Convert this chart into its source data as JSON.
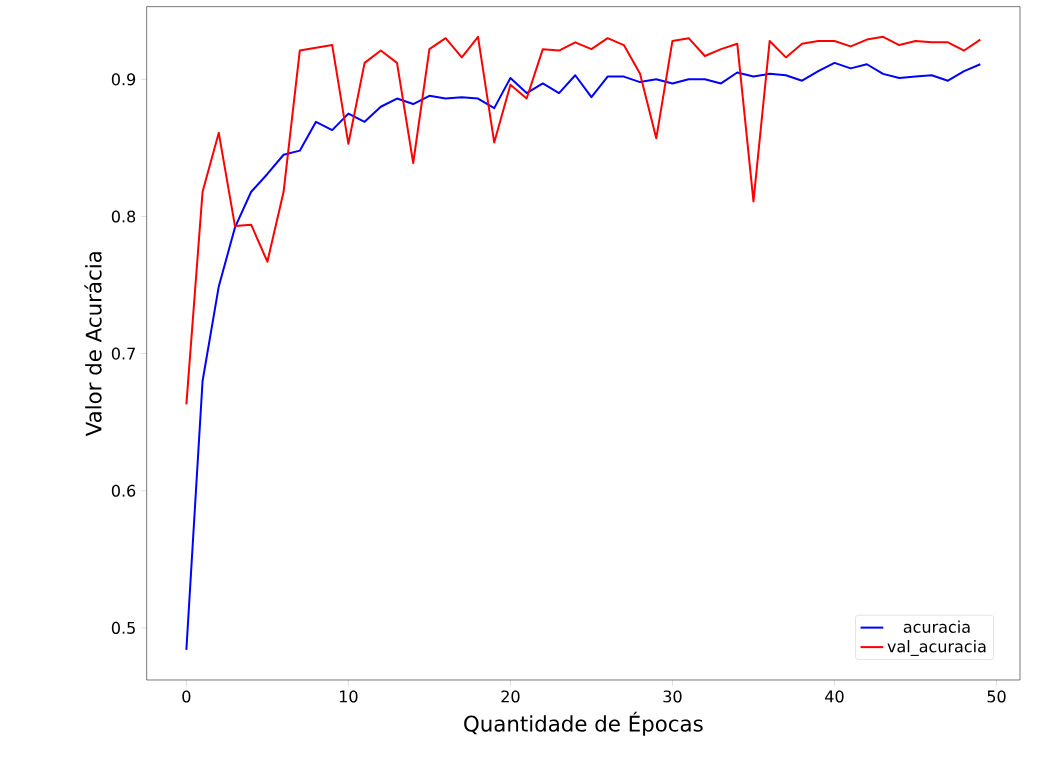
{
  "chart_data": {
    "type": "line",
    "xlabel": "Quantidade de Épocas",
    "ylabel": "Valor de Acurácia",
    "x": [
      0,
      1,
      2,
      3,
      4,
      5,
      6,
      7,
      8,
      9,
      10,
      11,
      12,
      13,
      14,
      15,
      16,
      17,
      18,
      19,
      20,
      21,
      22,
      23,
      24,
      25,
      26,
      27,
      28,
      29,
      30,
      31,
      32,
      33,
      34,
      35,
      36,
      37,
      38,
      39,
      40,
      41,
      42,
      43,
      44,
      45,
      46,
      47,
      48,
      49
    ],
    "series": [
      {
        "name": "acuracia",
        "color": "#0000ff",
        "values": [
          0.484,
          0.68,
          0.749,
          0.792,
          0.818,
          0.831,
          0.845,
          0.848,
          0.869,
          0.863,
          0.875,
          0.869,
          0.88,
          0.886,
          0.882,
          0.888,
          0.886,
          0.887,
          0.886,
          0.879,
          0.901,
          0.89,
          0.897,
          0.89,
          0.903,
          0.887,
          0.902,
          0.902,
          0.898,
          0.9,
          0.897,
          0.9,
          0.9,
          0.897,
          0.905,
          0.902,
          0.904,
          0.903,
          0.899,
          0.906,
          0.912,
          0.908,
          0.911,
          0.904,
          0.901,
          0.902,
          0.903,
          0.899,
          0.906,
          0.911
        ]
      },
      {
        "name": "val_acuracia",
        "color": "#ff0000",
        "values": [
          0.663,
          0.818,
          0.861,
          0.793,
          0.794,
          0.767,
          0.818,
          0.921,
          0.923,
          0.925,
          0.853,
          0.912,
          0.921,
          0.912,
          0.839,
          0.922,
          0.93,
          0.916,
          0.931,
          0.854,
          0.896,
          0.886,
          0.922,
          0.921,
          0.927,
          0.922,
          0.93,
          0.925,
          0.904,
          0.857,
          0.928,
          0.93,
          0.917,
          0.922,
          0.926,
          0.811,
          0.928,
          0.916,
          0.926,
          0.928,
          0.928,
          0.924,
          0.929,
          0.931,
          0.925,
          0.928,
          0.927,
          0.927,
          0.921,
          0.929
        ]
      }
    ],
    "xlim": [
      -2.45,
      51.45
    ],
    "ylim": [
      0.462,
      0.953
    ],
    "xticks": [
      0,
      10,
      20,
      30,
      40,
      50
    ],
    "yticks": [
      0.5,
      0.6,
      0.7,
      0.8,
      0.9
    ],
    "grid": false,
    "legend": "bottom right",
    "marker": "none",
    "line_style": "solid"
  }
}
